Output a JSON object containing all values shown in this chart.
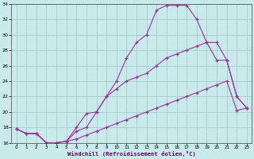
{
  "xlabel": "Windchill (Refroidissement éolien,°C)",
  "bg_color": "#c8eaea",
  "grid_color": "#aacccc",
  "line_color": "#993399",
  "line1_x": [
    0,
    1,
    2,
    3,
    4,
    5,
    6,
    7,
    8,
    9,
    10,
    11,
    12,
    13,
    14,
    15,
    16,
    17,
    18,
    19,
    20,
    21,
    22,
    23
  ],
  "line1_y": [
    17.8,
    17.2,
    17.2,
    16.0,
    16.0,
    16.2,
    18.0,
    19.8,
    20.0,
    22.0,
    24.0,
    27.0,
    29.0,
    30.0,
    33.2,
    33.8,
    33.8,
    33.8,
    32.0,
    29.0,
    29.0,
    26.7,
    22.0,
    20.5
  ],
  "line2_x": [
    0,
    1,
    2,
    3,
    4,
    5,
    6,
    7,
    8,
    9,
    10,
    11,
    12,
    13,
    14,
    15,
    16,
    17,
    18,
    19,
    20,
    21,
    22,
    23
  ],
  "line2_y": [
    17.8,
    17.2,
    17.2,
    16.0,
    16.0,
    16.2,
    17.5,
    18.0,
    20.0,
    22.0,
    23.0,
    24.0,
    24.5,
    25.0,
    26.0,
    27.0,
    27.5,
    28.0,
    28.5,
    29.0,
    26.7,
    26.7,
    22.0,
    20.5
  ],
  "line3_x": [
    0,
    1,
    2,
    3,
    4,
    5,
    6,
    7,
    8,
    9,
    10,
    11,
    12,
    13,
    14,
    15,
    16,
    17,
    18,
    19,
    20,
    21,
    22,
    23
  ],
  "line3_y": [
    17.8,
    17.2,
    17.2,
    16.0,
    16.0,
    16.2,
    16.5,
    17.0,
    17.5,
    18.0,
    18.5,
    19.0,
    19.5,
    20.0,
    20.5,
    21.0,
    21.5,
    22.0,
    22.5,
    23.0,
    23.5,
    24.0,
    20.2,
    20.5
  ],
  "ylim": [
    16,
    34
  ],
  "xlim": [
    -0.5,
    23.5
  ],
  "yticks": [
    16,
    18,
    20,
    22,
    24,
    26,
    28,
    30,
    32,
    34
  ],
  "xticks": [
    0,
    1,
    2,
    3,
    4,
    5,
    6,
    7,
    8,
    9,
    10,
    11,
    12,
    13,
    14,
    15,
    16,
    17,
    18,
    19,
    20,
    21,
    22,
    23
  ]
}
